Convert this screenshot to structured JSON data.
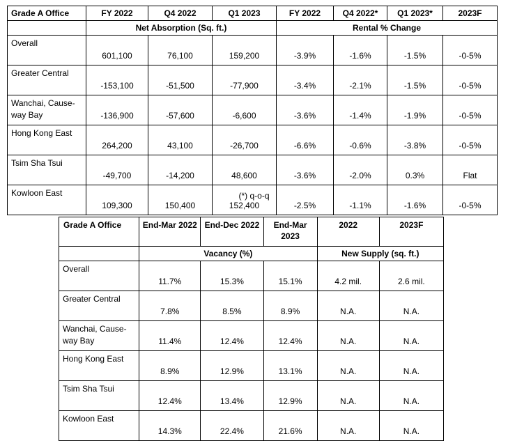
{
  "absorption_table": {
    "header": [
      "Grade A Office",
      "FY 2022",
      "Q4 2022",
      "Q1 2023",
      "FY 2022",
      "Q4 2022*",
      "Q1 2023*",
      "2023F"
    ],
    "group_left": "Net Absorption (Sq. ft.)",
    "group_right": "Rental % Change",
    "rows": [
      {
        "label": "Overall",
        "cells": [
          "601,100",
          "76,100",
          "159,200",
          "-3.9%",
          "-1.6%",
          "-1.5%",
          "-0-5%"
        ]
      },
      {
        "label": "Greater Central",
        "cells": [
          "-153,100",
          "-51,500",
          "-77,900",
          "-3.4%",
          "-2.1%",
          "-1.5%",
          "-0-5%"
        ]
      },
      {
        "label": "Wanchai, Cause-way Bay",
        "cells": [
          "-136,900",
          "-57,600",
          "-6,600",
          "-3.6%",
          "-1.4%",
          "-1.9%",
          "-0-5%"
        ]
      },
      {
        "label": "Hong Kong East",
        "cells": [
          "264,200",
          "43,100",
          "-26,700",
          "-6.6%",
          "-0.6%",
          "-3.8%",
          "-0-5%"
        ]
      },
      {
        "label": "Tsim Sha Tsui",
        "cells": [
          "-49,700",
          "-14,200",
          "48,600",
          "-3.6%",
          "-2.0%",
          "0.3%",
          "Flat"
        ]
      },
      {
        "label": "Kowloon East",
        "cells": [
          "109,300",
          "150,400",
          "152,400",
          "-2.5%",
          "-1.1%",
          "-1.6%",
          "-0-5%"
        ]
      }
    ]
  },
  "footnote": "(*) q-o-q",
  "vacancy_table": {
    "header": [
      "Grade A Office",
      "End-Mar 2022",
      "End-Dec 2022",
      "End-Mar 2023",
      "2022",
      "2023F"
    ],
    "group_left": "Vacancy (%)",
    "group_right": "New Supply (sq. ft.)",
    "rows": [
      {
        "label": "Overall",
        "cells": [
          "11.7%",
          "15.3%",
          "15.1%",
          "4.2 mil.",
          "2.6 mil."
        ]
      },
      {
        "label": "Greater Central",
        "cells": [
          "7.8%",
          "8.5%",
          "8.9%",
          "N.A.",
          "N.A."
        ]
      },
      {
        "label": "Wanchai, Cause-way Bay",
        "cells": [
          "11.4%",
          "12.4%",
          "12.4%",
          "N.A.",
          "N.A."
        ]
      },
      {
        "label": "Hong Kong East",
        "cells": [
          "8.9%",
          "12.9%",
          "13.1%",
          "N.A.",
          "N.A."
        ]
      },
      {
        "label": "Tsim Sha Tsui",
        "cells": [
          "12.4%",
          "13.4%",
          "12.9%",
          "N.A.",
          "N.A."
        ]
      },
      {
        "label": "Kowloon East",
        "cells": [
          "14.3%",
          "22.4%",
          "21.6%",
          "N.A.",
          "N.A."
        ]
      }
    ]
  }
}
